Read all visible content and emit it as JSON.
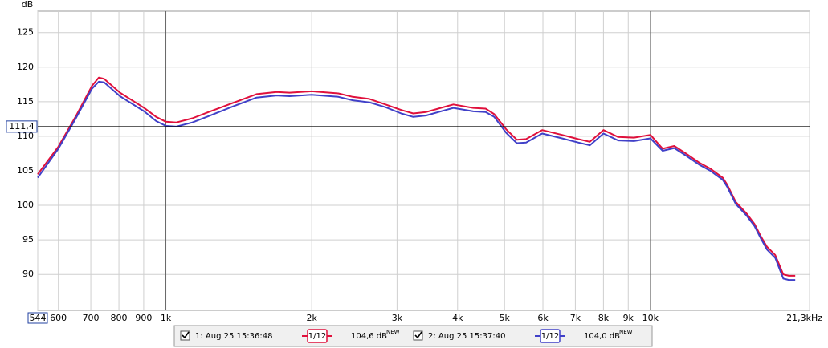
{
  "chart_data": {
    "type": "line",
    "y_label": "dB",
    "xscale": "log",
    "grid": true,
    "x": [
      544,
      600,
      653,
      704,
      727,
      746,
      804,
      902,
      955,
      1000,
      1051,
      1134,
      1224,
      1373,
      1539,
      1694,
      1800,
      2000,
      2270,
      2430,
      2630,
      2840,
      3060,
      3240,
      3440,
      3780,
      3920,
      4310,
      4570,
      4760,
      5040,
      5300,
      5540,
      5980,
      6570,
      7090,
      7500,
      8000,
      8580,
      9250,
      10000,
      10600,
      11200,
      11900,
      12600,
      13300,
      14100,
      14400,
      15000,
      15800,
      16400,
      16900,
      17400,
      18100,
      18800,
      19300,
      19900
    ],
    "series": [
      {
        "name": "1: Aug 25 15:36:48",
        "color": "#e0103c",
        "smoothing": "1/12",
        "level": "104,6 dB",
        "level_tag": "NEW",
        "values": [
          104.5,
          108.5,
          113,
          117.3,
          118.5,
          118.3,
          116.3,
          114.1,
          112.8,
          112.1,
          112,
          112.6,
          113.5,
          114.8,
          116.1,
          116.4,
          116.3,
          116.5,
          116.2,
          115.7,
          115.4,
          114.6,
          113.8,
          113.3,
          113.5,
          114.3,
          114.6,
          114.1,
          114,
          113.2,
          111,
          109.5,
          109.6,
          110.9,
          110.2,
          109.6,
          109.2,
          110.9,
          109.9,
          109.8,
          110.2,
          108.2,
          108.6,
          107.4,
          106.2,
          105.3,
          104,
          103,
          100.5,
          98.8,
          97.3,
          95.5,
          94,
          92.8,
          90,
          89.8,
          89.8
        ]
      },
      {
        "name": "2: Aug 25 15:37:40",
        "color": "#4040c8",
        "smoothing": "1/12",
        "level": "104,0 dB",
        "level_tag": "NEW",
        "values": [
          104,
          108.2,
          112.7,
          116.9,
          117.9,
          117.8,
          115.8,
          113.6,
          112.2,
          111.5,
          111.4,
          112,
          112.9,
          114.3,
          115.6,
          115.9,
          115.8,
          116,
          115.7,
          115.2,
          114.9,
          114.2,
          113.3,
          112.8,
          113,
          113.8,
          114.1,
          113.6,
          113.5,
          112.8,
          110.5,
          109,
          109.1,
          110.4,
          109.7,
          109.1,
          108.7,
          110.4,
          109.4,
          109.3,
          109.7,
          107.9,
          108.3,
          107.1,
          105.9,
          105,
          103.7,
          102.7,
          100.2,
          98.5,
          97,
          95.2,
          93.6,
          92.4,
          89.4,
          89.2,
          89.2
        ]
      }
    ],
    "xlim": [
      544,
      21300
    ],
    "xticks": [
      544,
      600,
      700,
      800,
      900,
      {
        "value": 1000,
        "label": "1k"
      },
      {
        "value": 2000,
        "label": "2k"
      },
      {
        "value": 3000,
        "label": "3k"
      },
      {
        "value": 4000,
        "label": "4k"
      },
      {
        "value": 5000,
        "label": "5k"
      },
      {
        "value": 6000,
        "label": "6k"
      },
      {
        "value": 7000,
        "label": "7k"
      },
      {
        "value": 8000,
        "label": "8k"
      },
      {
        "value": 9000,
        "label": "9k"
      },
      {
        "value": 10000,
        "label": "10k"
      },
      {
        "value": 21300,
        "label": "21,3kHz"
      }
    ],
    "ylim": [
      84.8,
      128.1
    ],
    "yticks": [
      90,
      95,
      100,
      105,
      110,
      115,
      120,
      125
    ],
    "cursor": {
      "value": 111.4,
      "label": "111,4"
    }
  }
}
